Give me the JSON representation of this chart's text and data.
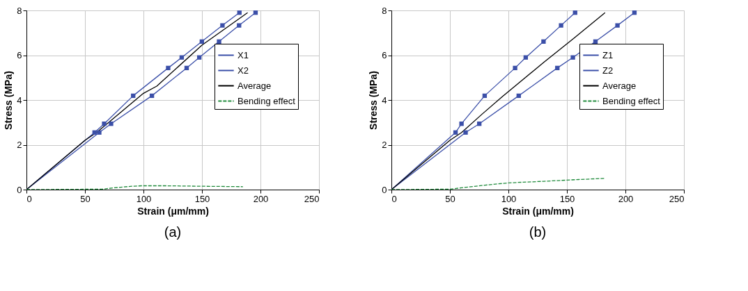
{
  "chart_data": [
    {
      "type": "line",
      "xlabel": "Strain (μm/mm)",
      "ylabel": "Stress (MPa)",
      "xlim": [
        0,
        250
      ],
      "xticks": [
        0,
        50,
        100,
        150,
        200,
        250
      ],
      "ylim": [
        0,
        8
      ],
      "yticks": [
        0,
        2,
        4,
        6,
        8
      ],
      "grid": true,
      "legend": "right",
      "annotations": [
        "(a)"
      ],
      "series": [
        {
          "name": "X1",
          "color": "#3b4fa8",
          "marker": "square",
          "line_style": "solid",
          "x": [
            0,
            58.2,
            66.4,
            91.2,
            121.1,
            132.7,
            149.9,
            167.5,
            182
          ],
          "values": [
            0,
            2.55,
            2.94,
            4.19,
            5.43,
            5.9,
            6.61,
            7.33,
            7.9
          ]
        },
        {
          "name": "X2",
          "color": "#3b4fa8",
          "marker": "square",
          "line_style": "solid",
          "x": [
            0,
            62.2,
            72.3,
            107.2,
            136.9,
            147.7,
            164.6,
            181.7,
            195.8
          ],
          "values": [
            0,
            2.55,
            2.94,
            4.19,
            5.43,
            5.9,
            6.61,
            7.33,
            7.9
          ]
        },
        {
          "name": "Average",
          "color": "#000000",
          "marker": "none",
          "line_style": "solid",
          "x": [
            0,
            50,
            60,
            100,
            111.4,
            150,
            189
          ],
          "values": [
            0,
            2.2,
            2.55,
            4.3,
            4.62,
            6.45,
            7.9
          ]
        },
        {
          "name": "Bending effect",
          "color": "#1e8a3a",
          "marker": "none",
          "line_style": "dashed",
          "x": [
            0,
            65,
            75,
            90,
            98.5,
            120,
            150,
            185
          ],
          "values": [
            0,
            0.02,
            0.08,
            0.15,
            0.17,
            0.17,
            0.15,
            0.13
          ]
        }
      ]
    },
    {
      "type": "line",
      "xlabel": "Strain (μm/mm)",
      "ylabel": "Stress (MPa)",
      "xlim": [
        0,
        250
      ],
      "xticks": [
        0,
        50,
        100,
        150,
        200,
        250
      ],
      "ylim": [
        0,
        8
      ],
      "yticks": [
        0,
        2,
        4,
        6,
        8
      ],
      "grid": true,
      "legend": "right",
      "annotations": [
        "(b)"
      ],
      "series": [
        {
          "name": "Z1",
          "color": "#3b4fa8",
          "marker": "square",
          "line_style": "solid",
          "x": [
            0,
            54.8,
            59.9,
            79.7,
            105.7,
            114.8,
            130,
            145,
            157
          ],
          "values": [
            0,
            2.55,
            2.94,
            4.19,
            5.43,
            5.9,
            6.61,
            7.33,
            7.9
          ]
        },
        {
          "name": "Z2",
          "color": "#3b4fa8",
          "marker": "square",
          "line_style": "solid",
          "x": [
            0,
            63.4,
            75.1,
            108.8,
            141.8,
            155.1,
            174.4,
            193.2,
            207.7
          ],
          "values": [
            0,
            2.55,
            2.94,
            4.19,
            5.43,
            5.9,
            6.61,
            7.33,
            7.9
          ]
        },
        {
          "name": "Average",
          "color": "#000000",
          "marker": "none",
          "line_style": "solid",
          "x": [
            0,
            50,
            60,
            77.3,
            94.7,
            130.4,
            156,
            182.6
          ],
          "values": [
            0,
            2.2,
            2.55,
            3.36,
            4.15,
            5.69,
            6.76,
            7.9
          ]
        },
        {
          "name": "Bending effect",
          "color": "#1e8a3a",
          "marker": "none",
          "line_style": "dashed",
          "x": [
            0,
            50,
            60,
            80,
            100,
            130,
            160,
            182
          ],
          "values": [
            0,
            0.02,
            0.08,
            0.2,
            0.3,
            0.37,
            0.45,
            0.5
          ]
        }
      ]
    }
  ]
}
